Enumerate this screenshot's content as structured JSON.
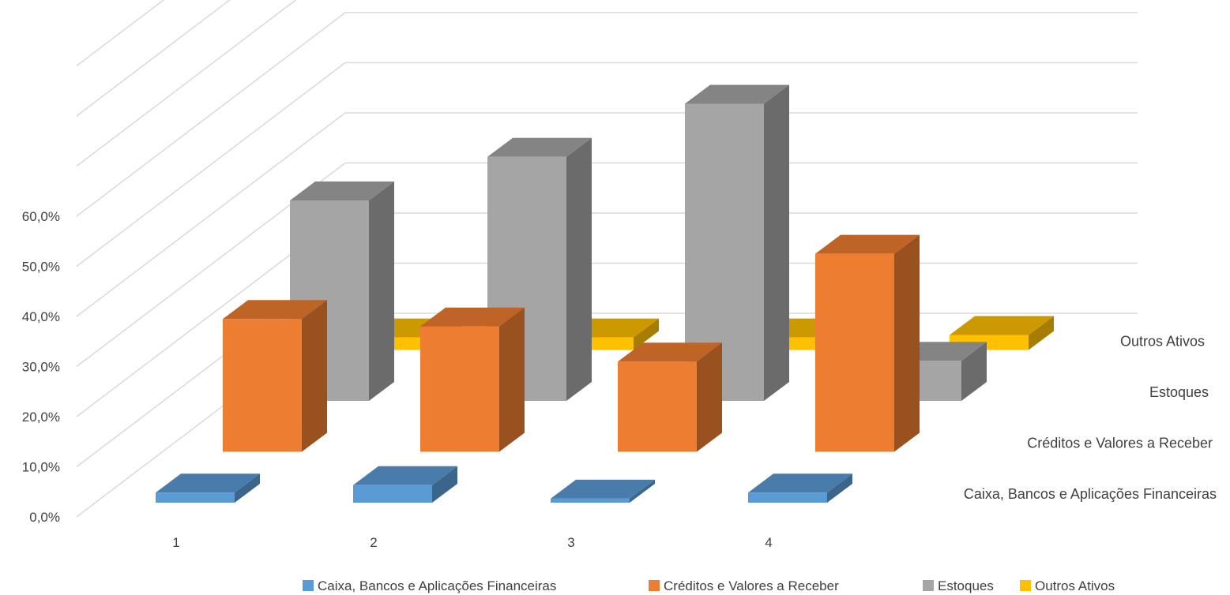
{
  "chart_data": {
    "type": "bar",
    "style": "3d-column",
    "categories": [
      "1",
      "2",
      "3",
      "4"
    ],
    "ylim": [
      0,
      0.6
    ],
    "yticks": [
      "0,0%",
      "10,0%",
      "20,0%",
      "30,0%",
      "40,0%",
      "50,0%",
      "60,0%"
    ],
    "grid": true,
    "legend_position": "bottom",
    "series": [
      {
        "name": "Caixa, Bancos e Aplicações Financeiras",
        "color": "#5B9BD5",
        "values": [
          0.02,
          0.035,
          0.008,
          0.02
        ]
      },
      {
        "name": "Créditos e Valores a Receber",
        "color": "#ED7D31",
        "values": [
          0.265,
          0.25,
          0.18,
          0.395
        ]
      },
      {
        "name": "Estoques",
        "color": "#A5A5A5",
        "values": [
          0.4,
          0.487,
          0.593,
          0.08
        ]
      },
      {
        "name": "Outros Ativos",
        "color": "#FFC000",
        "values": [
          0.025,
          0.025,
          0.025,
          0.03
        ]
      }
    ]
  }
}
